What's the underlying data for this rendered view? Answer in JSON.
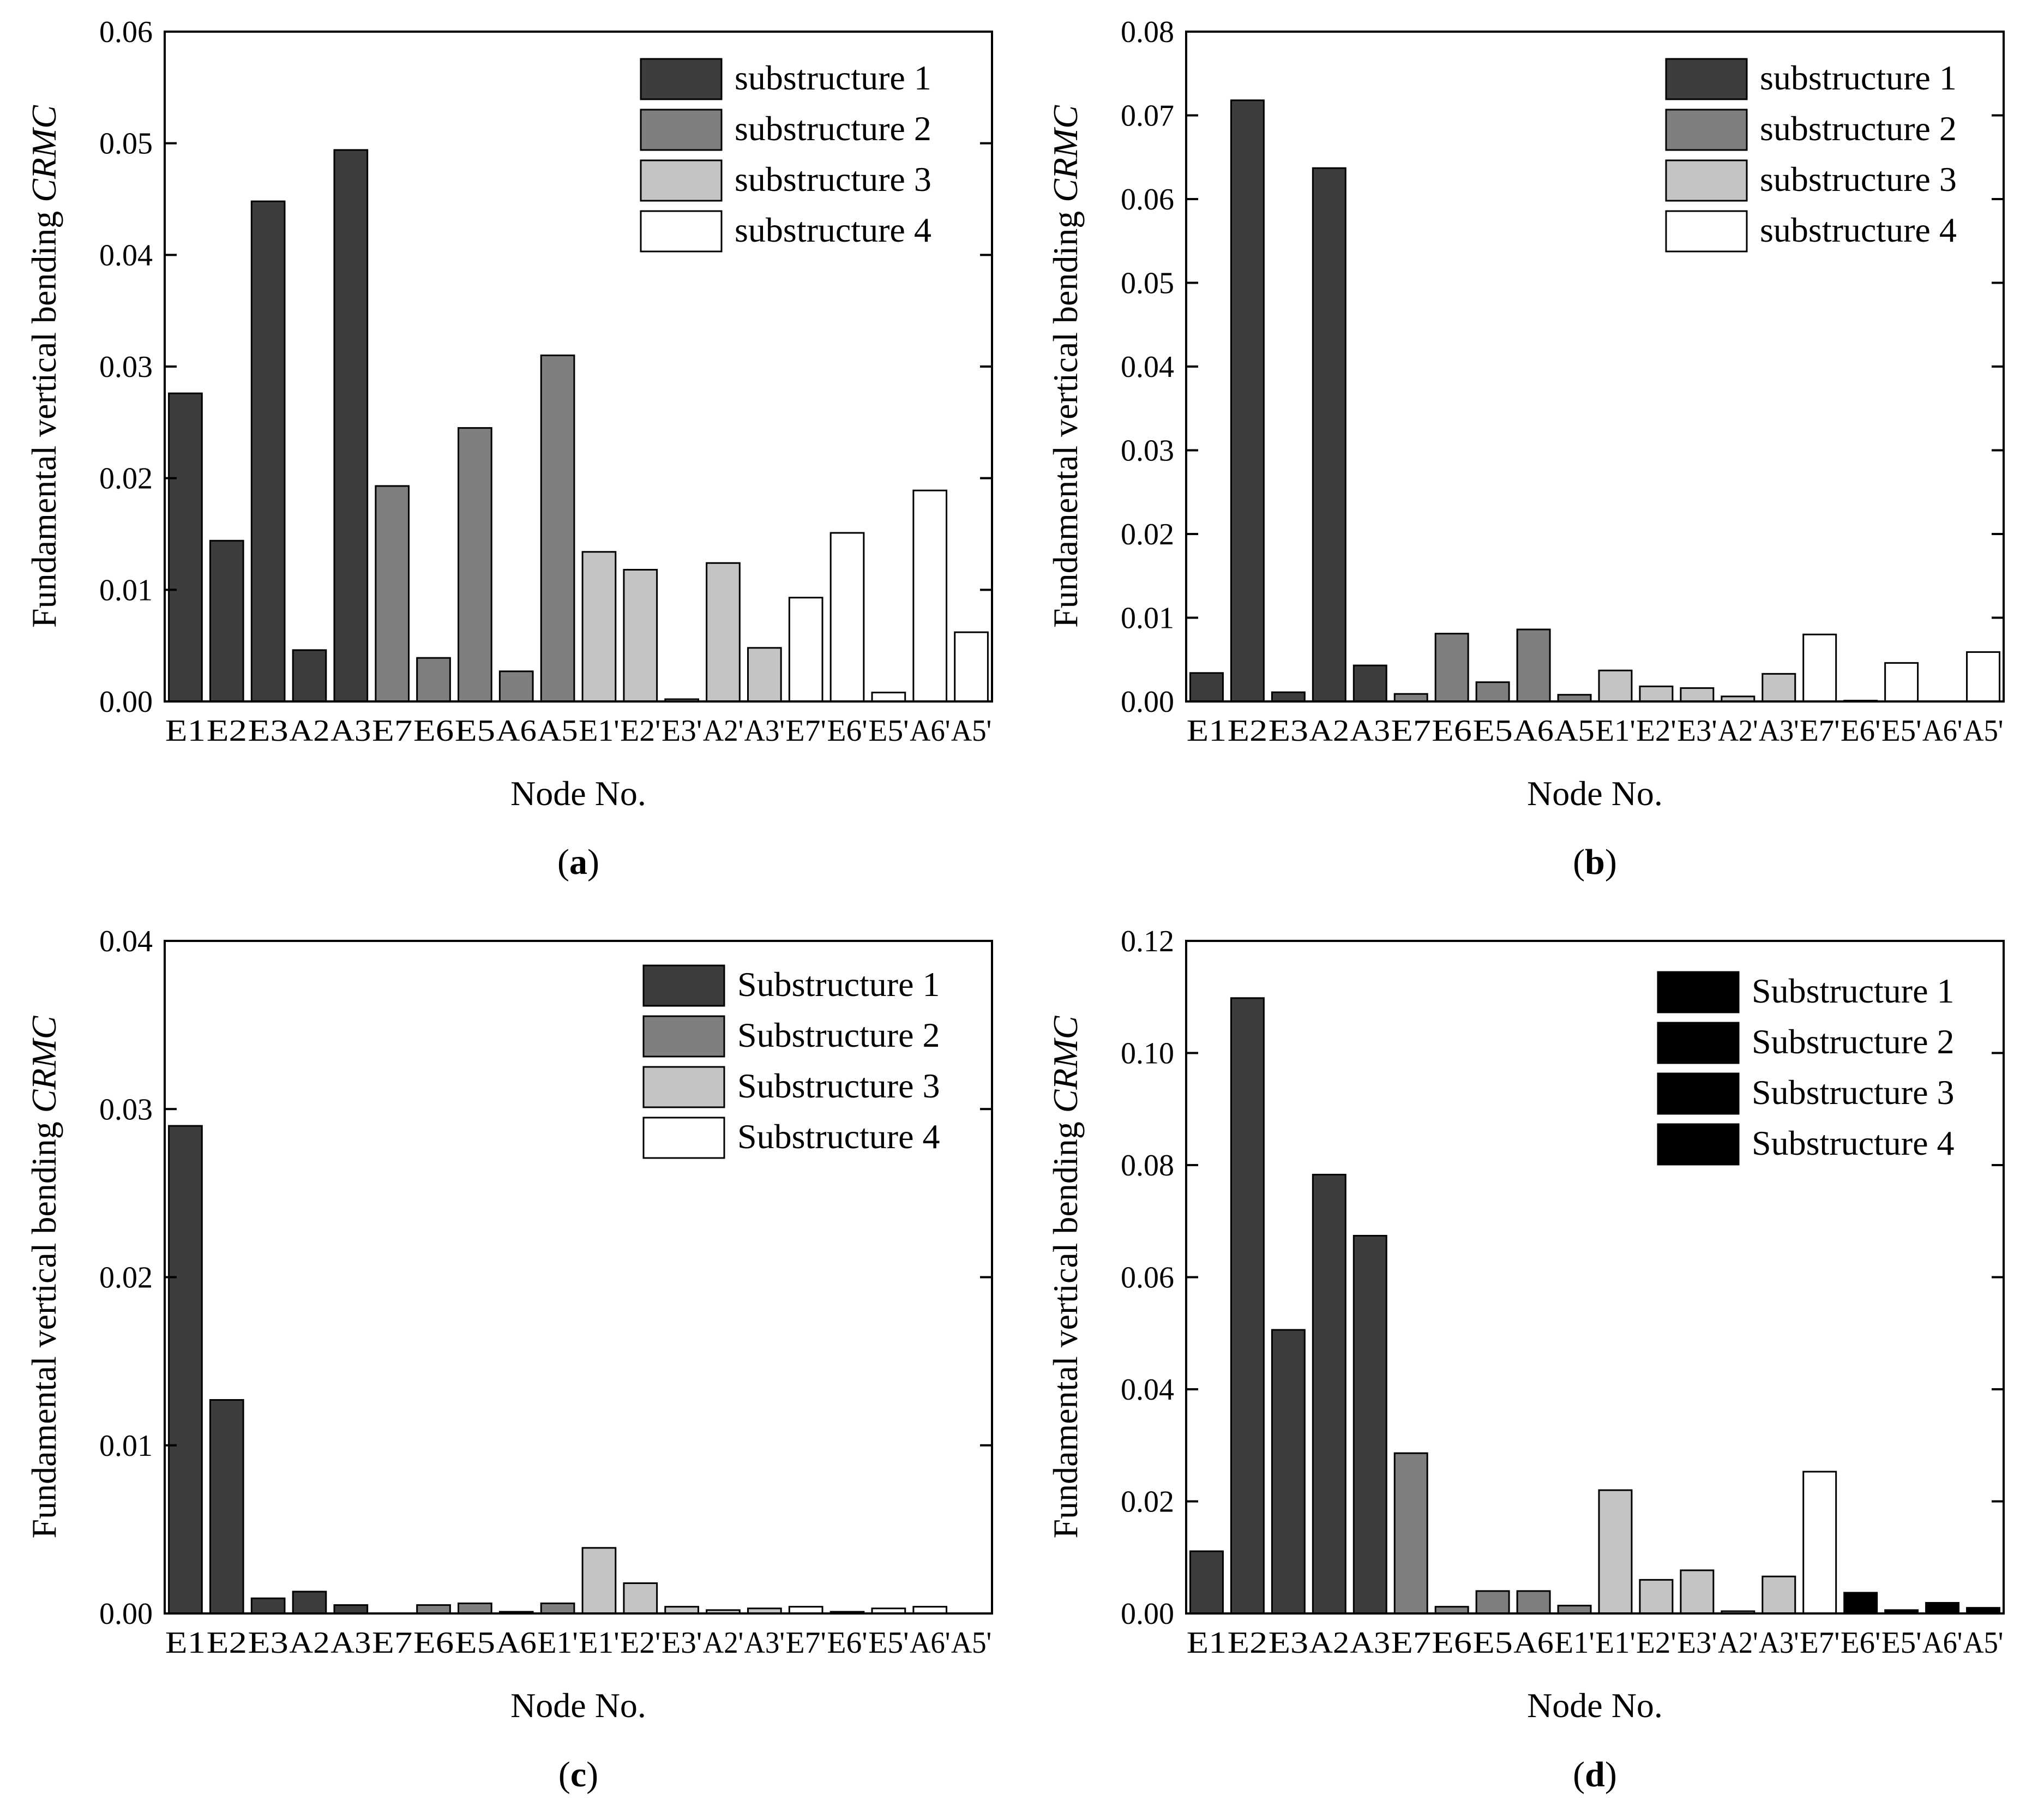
{
  "chart_data": [
    {
      "panel": "a",
      "type": "bar",
      "ylabel_prefix": "Fundamental vertical bending ",
      "ylabel_italic": "CRMC",
      "xlabel": "Node No.",
      "ylim": [
        0,
        0.06
      ],
      "yticks": [
        "0.00",
        "0.01",
        "0.02",
        "0.03",
        "0.04",
        "0.05",
        "0.06"
      ],
      "categories": [
        "E1",
        "E2",
        "E3",
        "A2",
        "A3",
        "E7",
        "E6",
        "E5",
        "A6",
        "A5",
        "E1'",
        "E2'",
        "E3'",
        "A2'",
        "A3'",
        "E7'",
        "E6'",
        "E5'",
        "A6'",
        "A5'"
      ],
      "values": [
        0.0276,
        0.0144,
        0.0448,
        0.0046,
        0.0494,
        0.0193,
        0.0039,
        0.0245,
        0.0027,
        0.031,
        0.0134,
        0.0118,
        0.0002,
        0.0124,
        0.0048,
        0.0093,
        0.0151,
        0.0008,
        0.0189,
        0.0062
      ],
      "groups": [
        1,
        1,
        1,
        1,
        1,
        2,
        2,
        2,
        2,
        2,
        3,
        3,
        3,
        3,
        3,
        4,
        4,
        4,
        4,
        4
      ],
      "group_colors": [
        "#3d3d3d",
        "#7f7f7f",
        "#c4c4c4",
        "#ffffff"
      ],
      "legend": [
        "substructure 1",
        "substructure 2",
        "substructure 3",
        "substructure 4"
      ],
      "legend_colors": [
        "#3d3d3d",
        "#7f7f7f",
        "#c4c4c4",
        "#ffffff"
      ],
      "caption": "a"
    },
    {
      "panel": "b",
      "type": "bar",
      "ylabel_prefix": "Fundamental vertical bending ",
      "ylabel_italic": "CRMC",
      "xlabel": "Node No.",
      "ylim": [
        0,
        0.08
      ],
      "yticks": [
        "0.00",
        "0.01",
        "0.02",
        "0.03",
        "0.04",
        "0.05",
        "0.06",
        "0.07",
        "0.08"
      ],
      "categories": [
        "E1",
        "E2",
        "E3",
        "A2",
        "A3",
        "E7",
        "E6",
        "E5",
        "A6",
        "A5",
        "E1'",
        "E2'",
        "E3'",
        "A2'",
        "A3'",
        "E7'",
        "E6'",
        "E5'",
        "A6'",
        "A5'"
      ],
      "values": [
        0.0034,
        0.0718,
        0.0011,
        0.0637,
        0.0043,
        0.0009,
        0.0081,
        0.0023,
        0.0086,
        0.0008,
        0.0037,
        0.0018,
        0.0016,
        0.0006,
        0.0033,
        0.008,
        0.0001,
        0.0046,
        0.0,
        0.0059
      ],
      "groups": [
        1,
        1,
        1,
        1,
        1,
        2,
        2,
        2,
        2,
        2,
        3,
        3,
        3,
        3,
        3,
        4,
        4,
        4,
        4,
        4
      ],
      "group_colors": [
        "#3d3d3d",
        "#7f7f7f",
        "#c4c4c4",
        "#ffffff"
      ],
      "legend": [
        "substructure 1",
        "substructure 2",
        "substructure 3",
        "substructure 4"
      ],
      "legend_colors": [
        "#3d3d3d",
        "#7f7f7f",
        "#c4c4c4",
        "#ffffff"
      ],
      "caption": "b"
    },
    {
      "panel": "c",
      "type": "bar",
      "ylabel_prefix": "Fundamental vertical bending ",
      "ylabel_italic": "CRMC",
      "xlabel": "Node No.",
      "ylim": [
        0,
        0.04
      ],
      "yticks": [
        "0.00",
        "0.01",
        "0.02",
        "0.03",
        "0.04"
      ],
      "categories": [
        "E1",
        "E2",
        "E3",
        "A2",
        "A3",
        "E7",
        "E6",
        "E5",
        "A6",
        "E1'",
        "E1'",
        "E2'",
        "E3'",
        "A2'",
        "A3'",
        "E7'",
        "E6'",
        "E5'",
        "A6'",
        "A5'"
      ],
      "values": [
        0.029,
        0.0127,
        0.0009,
        0.0013,
        0.0005,
        0.0,
        0.0005,
        0.0006,
        0.0001,
        0.0006,
        0.0039,
        0.0018,
        0.0004,
        0.0002,
        0.0003,
        0.0004,
        0.0001,
        0.0003,
        0.0004,
        0.0
      ],
      "groups": [
        1,
        1,
        1,
        1,
        1,
        2,
        2,
        2,
        2,
        2,
        3,
        3,
        3,
        3,
        3,
        4,
        4,
        4,
        4,
        4
      ],
      "group_colors": [
        "#3d3d3d",
        "#7f7f7f",
        "#c4c4c4",
        "#ffffff"
      ],
      "legend": [
        "Substructure 1",
        "Substructure 2",
        "Substructure 3",
        "Substructure 4"
      ],
      "legend_colors": [
        "#3d3d3d",
        "#7f7f7f",
        "#c4c4c4",
        "#ffffff"
      ],
      "caption": "c"
    },
    {
      "panel": "d",
      "type": "bar",
      "ylabel_prefix": "Fundamental vertical bending ",
      "ylabel_italic": "CRMC",
      "xlabel": "Node No.",
      "ylim": [
        0,
        0.12
      ],
      "yticks": [
        "0.00",
        "0.02",
        "0.04",
        "0.06",
        "0.08",
        "0.10",
        "0.12"
      ],
      "categories": [
        "E1",
        "E2",
        "E3",
        "A2",
        "A3",
        "E7",
        "E6",
        "E5",
        "A6",
        "E1'",
        "E1'",
        "E2'",
        "E3'",
        "A2'",
        "A3'",
        "E7'",
        "E6'",
        "E5'",
        "A6'",
        "A5'"
      ],
      "values": [
        0.0111,
        0.1098,
        0.0506,
        0.0783,
        0.0674,
        0.0286,
        0.0012,
        0.004,
        0.004,
        0.0014,
        0.022,
        0.006,
        0.0077,
        0.0004,
        0.0066,
        0.0253,
        0.0037,
        0.0006,
        0.0019,
        0.001
      ],
      "groups": [
        1,
        1,
        1,
        1,
        1,
        2,
        2,
        2,
        2,
        2,
        3,
        3,
        3,
        3,
        3,
        4,
        4,
        4,
        4,
        4
      ],
      "group_colors": [
        "#3d3d3d",
        "#7f7f7f",
        "#c4c4c4",
        "#ffffff"
      ],
      "bar_color_overrides": {
        "16": "#000000",
        "17": "#000000",
        "18": "#000000",
        "19": "#000000"
      },
      "legend": [
        "Substructure 1",
        "Substructure 2",
        "Substructure 3",
        "Substructure 4"
      ],
      "legend_colors": [
        "#000000",
        "#000000",
        "#000000",
        "#000000"
      ],
      "caption": "d"
    }
  ]
}
